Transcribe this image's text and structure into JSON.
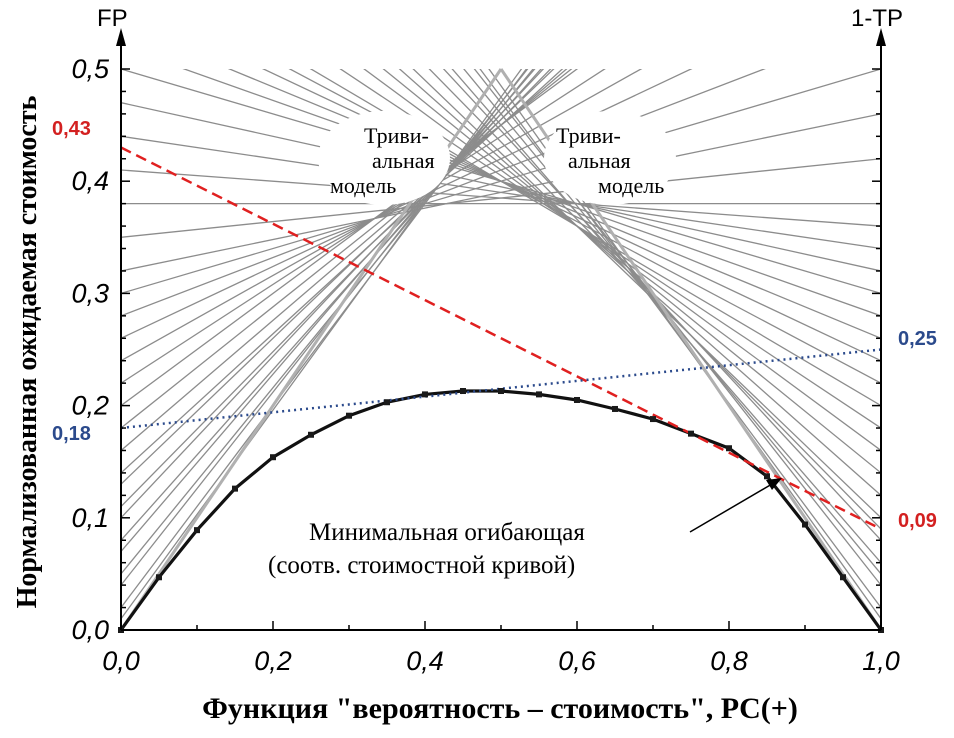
{
  "chart_data": {
    "type": "line",
    "xlabel": "Функция \"вероятность – стоимость\", PC(+)",
    "ylabel": "Нормализованная ожидаемая стоимость",
    "left_axis_label": "FP",
    "right_axis_label": "1-TP",
    "xlim": [
      0,
      1
    ],
    "ylim": [
      0,
      0.5
    ],
    "x_ticks": [
      "0,0",
      "0,2",
      "0,4",
      "0,6",
      "0,8",
      "1,0"
    ],
    "y_ticks": [
      "0,0",
      "0,1",
      "0,2",
      "0,3",
      "0,4",
      "0,5"
    ],
    "grid": false,
    "series": [
      {
        "x": [
          0,
          0.05,
          0.1,
          0.15,
          0.2,
          0.25,
          0.3,
          0.35,
          0.4,
          0.45,
          0.5,
          0.55,
          0.6,
          0.65,
          0.7,
          0.75,
          0.8,
          0.85,
          0.9,
          0.95,
          1.0
        ],
        "y": [
          0,
          0.047,
          0.089,
          0.126,
          0.154,
          0.174,
          0.191,
          0.203,
          0.21,
          0.213,
          0.213,
          0.21,
          0.205,
          0.197,
          0.188,
          0.175,
          0.162,
          0.137,
          0.094,
          0.047,
          0
        ],
        "color": "#111111",
        "style": "solid-markers"
      },
      {
        "x": [
          0,
          1
        ],
        "y": [
          0.43,
          0.09
        ],
        "color": "#e02020",
        "style": "dashed"
      },
      {
        "x": [
          0,
          1
        ],
        "y": [
          0.18,
          0.25
        ],
        "color": "#2b4a8c",
        "style": "dotted"
      }
    ],
    "cost_lines": {
      "color": "#8c8c8c",
      "fp_left": [
        0.01,
        0.02,
        0.04,
        0.05,
        0.07,
        0.08,
        0.1,
        0.11,
        0.13,
        0.14,
        0.16,
        0.18,
        0.2,
        0.22,
        0.24,
        0.26,
        0.28,
        0.3,
        0.32,
        0.35,
        0.38,
        0.41,
        0.44,
        0.47,
        0.5,
        0.52,
        0.54,
        0.56,
        0.58,
        0.6,
        0.63,
        0.66,
        0.69,
        0.72,
        0.75,
        0.78,
        0.81,
        0.84,
        0.87,
        0.9,
        0.93,
        0.96
      ],
      "fn_right": [
        0.94,
        0.92,
        0.9,
        0.88,
        0.86,
        0.84,
        0.82,
        0.8,
        0.78,
        0.76,
        0.74,
        0.72,
        0.7,
        0.66,
        0.62,
        0.58,
        0.54,
        0.5,
        0.46,
        0.42,
        0.38,
        0.36,
        0.34,
        0.32,
        0.3,
        0.28,
        0.26,
        0.24,
        0.22,
        0.2,
        0.18,
        0.16,
        0.14,
        0.12,
        0.1,
        0.09,
        0.08,
        0.06,
        0.05,
        0.04,
        0.02,
        0.01
      ]
    },
    "trivial_models": [
      {
        "x": [
          0,
          0.5
        ],
        "y": [
          0,
          0.5
        ]
      },
      {
        "x": [
          0.5,
          1
        ],
        "y": [
          0.5,
          0
        ]
      }
    ],
    "annotations": {
      "trivial_left": [
        "Триви-",
        "альная",
        "модель"
      ],
      "trivial_right": [
        "Триви-",
        "альная",
        "модель"
      ],
      "envelope": [
        "Минимальная огибающая",
        "(соотв. стоимостной кривой)"
      ]
    },
    "value_labels": {
      "red_left": "0,43",
      "red_right": "0,09",
      "blue_left": "0,18",
      "blue_right": "0,25"
    }
  }
}
